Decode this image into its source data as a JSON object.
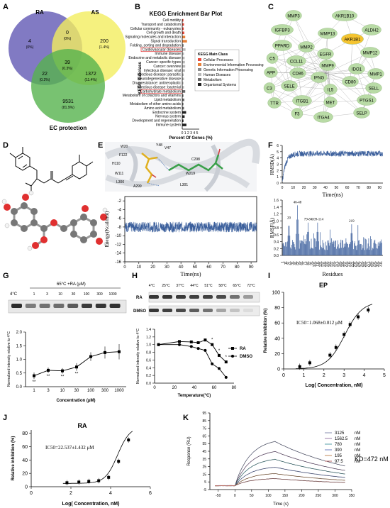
{
  "panels": {
    "A": {
      "letter": "A",
      "set_labels": [
        "RA",
        "AS",
        "EC protection"
      ],
      "regions": [
        {
          "count": "4",
          "pct": "(0%)",
          "color": "#5b5bb0"
        },
        {
          "count": "200",
          "pct": "(1.4%)",
          "color": "#f4ef6a"
        },
        {
          "count": "0",
          "pct": "(0%)",
          "color": "#8aa080"
        },
        {
          "count": "39",
          "pct": "(0.3%)",
          "color": "#7a9b50"
        },
        {
          "count": "22",
          "pct": "(0.2%)",
          "color": "#4f8f73"
        },
        {
          "count": "1372",
          "pct": "(11.4%)",
          "color": "#a9cf4e"
        },
        {
          "count": "9531",
          "pct": "(81.9%)",
          "color": "#57b44f"
        }
      ]
    },
    "B": {
      "letter": "B",
      "title": "KEGG Enrichment Bar Plot",
      "ylabel": "KEGG Subclass",
      "xlabel": "Percent Of Genes (%)",
      "xticks": [
        "0",
        "1",
        "2",
        "3",
        "4",
        "5"
      ],
      "legend_title": "KEGG Main Class",
      "legend": [
        {
          "name": "Cellular Processes",
          "color": "#e84a3c"
        },
        {
          "name": "Environmental Information Processing",
          "color": "#e8823c"
        },
        {
          "name": "Genetic Information Processing",
          "color": "#8c8c8c"
        },
        {
          "name": "Human Diseases",
          "color": "#b8b8b8"
        },
        {
          "name": "Metabolism",
          "color": "#6a6a6a"
        },
        {
          "name": "Organismal Systems",
          "color": "#222222"
        }
      ],
      "highlighted": [
        "Cardiovascular diseases",
        "Carbohydrate metabolism"
      ],
      "subclasses": [
        {
          "name": "Cell motility",
          "value": 0.4,
          "color": "#e84a3c"
        },
        {
          "name": "Transport and catabolism",
          "value": 0.6,
          "color": "#e84a3c"
        },
        {
          "name": "Cellular community - eukaryotes",
          "value": 0.5,
          "color": "#e84a3c"
        },
        {
          "name": "Cell growth and death",
          "value": 0.7,
          "color": "#e84a3c"
        },
        {
          "name": "Signaling molecules and interaction",
          "value": 1.0,
          "color": "#e8823c"
        },
        {
          "name": "Signal transduction",
          "value": 1.6,
          "color": "#e8823c"
        },
        {
          "name": "Folding, sorting and degradation",
          "value": 0.5,
          "color": "#8c8c8c"
        },
        {
          "name": "Cardiovascular diseases",
          "value": 1.1,
          "color": "#b8b8b8"
        },
        {
          "name": "Immune disease",
          "value": 0.6,
          "color": "#b8b8b8"
        },
        {
          "name": "Endocrine and metabolic disease",
          "value": 0.8,
          "color": "#b8b8b8"
        },
        {
          "name": "Cancer: specific types",
          "value": 0.9,
          "color": "#b8b8b8"
        },
        {
          "name": "Cancer: overview",
          "value": 1.0,
          "color": "#b8b8b8"
        },
        {
          "name": "Infectious disease: viral",
          "value": 0.9,
          "color": "#b8b8b8"
        },
        {
          "name": "Infectious disease: parasitic",
          "value": 0.5,
          "color": "#b8b8b8"
        },
        {
          "name": "Neurodegenerative disease",
          "value": 0.6,
          "color": "#b8b8b8"
        },
        {
          "name": "Drug resistance: antineoplastic",
          "value": 0.4,
          "color": "#b8b8b8"
        },
        {
          "name": "Infectious disease: bacterial",
          "value": 0.6,
          "color": "#b8b8b8"
        },
        {
          "name": "Carbohydrate metabolism",
          "value": 1.0,
          "color": "#6a6a6a"
        },
        {
          "name": "Metabolism of cofactors and vitamins",
          "value": 0.4,
          "color": "#6a6a6a"
        },
        {
          "name": "Lipid metabolism",
          "value": 0.7,
          "color": "#6a6a6a"
        },
        {
          "name": "Metabolism of other amino acids",
          "value": 0.4,
          "color": "#6a6a6a"
        },
        {
          "name": "Amino acid metabolism",
          "value": 0.6,
          "color": "#6a6a6a"
        },
        {
          "name": "Endocrine system",
          "value": 1.3,
          "color": "#222222"
        },
        {
          "name": "Nervous system",
          "value": 0.8,
          "color": "#222222"
        },
        {
          "name": "Development and regeneration",
          "value": 0.4,
          "color": "#222222"
        },
        {
          "name": "Immune system",
          "value": 1.4,
          "color": "#222222"
        }
      ]
    },
    "C": {
      "letter": "C",
      "highlight_color": "#f5c431",
      "node_color": "#b9dba6",
      "nodes": [
        {
          "id": "MMP3"
        },
        {
          "id": "AKR1B10"
        },
        {
          "id": "IGFBP3"
        },
        {
          "id": "MMP13"
        },
        {
          "id": "ALDH2"
        },
        {
          "id": "AKR1B1",
          "highlight": true
        },
        {
          "id": "PPARD"
        },
        {
          "id": "MMP2"
        },
        {
          "id": "MMP12"
        },
        {
          "id": "C5"
        },
        {
          "id": "CCL11"
        },
        {
          "id": "EGFR"
        },
        {
          "id": "APP"
        },
        {
          "id": "CD86"
        },
        {
          "id": "MMP9"
        },
        {
          "id": "IDO1"
        },
        {
          "id": "MMP1"
        },
        {
          "id": "IFNG"
        },
        {
          "id": "SELE"
        },
        {
          "id": "CD80"
        },
        {
          "id": "C3"
        },
        {
          "id": "IL5"
        },
        {
          "id": "SELL"
        },
        {
          "id": "TTR"
        },
        {
          "id": "ITGB1"
        },
        {
          "id": "MET"
        },
        {
          "id": "PTGS1"
        },
        {
          "id": "F3"
        },
        {
          "id": "ITGA4"
        },
        {
          "id": "SELP"
        }
      ]
    },
    "D": {
      "letter": "D"
    },
    "E": {
      "letter": "E",
      "ylabel": "Energy(Kcal/mol)",
      "xlabel": "Time(ns)",
      "yticks": [
        "-2",
        "-4",
        "-6",
        "-8",
        "-10",
        "-12",
        "-14",
        "-16"
      ],
      "xticks": [
        "0",
        "10",
        "20",
        "30",
        "40",
        "50",
        "60",
        "70",
        "80",
        "90"
      ],
      "residues": [
        "W20",
        "Y48",
        "H110",
        "W111",
        "L300",
        "W219",
        "V47",
        "A299",
        "L301",
        "F122",
        "C298"
      ],
      "trace": {
        "mean": -8.0,
        "amplitude": 1.2,
        "n": 900,
        "color": "#3b5f9c"
      }
    },
    "F": {
      "letter": "F",
      "rmsd": {
        "ylabel": "RMSD(Å)",
        "xlabel": "Time(ns)",
        "yticks": [
          "0",
          "1",
          "2",
          "3",
          "4",
          "5",
          "6"
        ],
        "xticks": [
          "0",
          "10",
          "20",
          "30",
          "40",
          "50",
          "60",
          "70",
          "80",
          "90"
        ],
        "plateau": 4.7,
        "color": "#3b5f9c"
      },
      "rmsf": {
        "ylabel": "RMSF(Å)",
        "xlabel": "Residues",
        "yticks": [
          "0.0",
          "0.2",
          "0.4",
          "0.6",
          "0.8",
          "1.0",
          "1.2",
          "1.4",
          "1.6"
        ],
        "color": "#3b5f9c",
        "peaks": [
          {
            "label": "20",
            "x": 20,
            "y": 1.0
          },
          {
            "label": "46-48",
            "x": 47,
            "y": 1.45
          },
          {
            "label": "79-84",
            "x": 81,
            "y": 0.95
          },
          {
            "label": "109-114",
            "x": 111,
            "y": 0.95
          },
          {
            "label": "219",
            "x": 219,
            "y": 0.9
          }
        ],
        "x_start": 1,
        "x_end": 316
      }
    },
    "G": {
      "letter": "G",
      "blot_header": "65°C +RA (μM)",
      "control_label": "4°C",
      "lane_labels": [
        "1",
        "3",
        "10",
        "30",
        "100",
        "300",
        "1000"
      ],
      "ylabel": "Normalized intensity relative to 4°C",
      "xlabel": "Concentration (μM)",
      "x": [
        "1",
        "3",
        "10",
        "30",
        "100",
        "300",
        "1000"
      ],
      "y": [
        0.4,
        0.6,
        0.58,
        0.72,
        1.1,
        1.25,
        1.28
      ],
      "err": [
        0.12,
        0.1,
        0.1,
        0.14,
        0.16,
        0.22,
        0.28
      ],
      "sig": [
        "**",
        "**",
        "**",
        "**",
        "",
        "",
        ""
      ],
      "yticks": [
        "0.0",
        "0.5",
        "1.0",
        "1.5",
        "2.0"
      ],
      "ylim": [
        0,
        2
      ]
    },
    "H": {
      "letter": "H",
      "temperatures": [
        "4°C",
        "25°C",
        "37°C",
        "44°C",
        "51°C",
        "58°C",
        "65°C",
        "72°C"
      ],
      "row_labels": [
        "RA",
        "DMSO"
      ],
      "ylabel": "Normalized intensity relative to 4°C",
      "xlabel": "Temperature(°C)",
      "xticks": [
        "0",
        "20",
        "40",
        "60",
        "80"
      ],
      "yticks": [
        "0.0",
        "0.2",
        "0.4",
        "0.6",
        "0.8",
        "1.0",
        "1.2",
        "1.4"
      ],
      "ylim": [
        0,
        1.4
      ],
      "series": [
        {
          "name": "RA",
          "x": [
            4,
            25,
            37,
            44,
            51,
            58,
            65,
            72
          ],
          "y": [
            1.0,
            1.08,
            1.07,
            1.05,
            1.12,
            1.0,
            0.72,
            0.55
          ]
        },
        {
          "name": "DMSO",
          "x": [
            4,
            25,
            37,
            44,
            51,
            58,
            65,
            72
          ],
          "y": [
            1.0,
            1.0,
            0.95,
            0.9,
            0.85,
            0.5,
            0.38,
            0.15
          ]
        }
      ],
      "sig": [
        "*",
        "*",
        "*"
      ]
    },
    "I": {
      "letter": "I",
      "title": "EP",
      "ylabel": "Relative inhibition (%)",
      "xlabel": "Log( Concentration, nM)",
      "annotation": "IC50=1.068±0.012 μM",
      "xticks": [
        "0",
        "1",
        "2",
        "3",
        "4",
        "5"
      ],
      "yticks": [
        "0",
        "20",
        "40",
        "60",
        "80",
        "100"
      ],
      "x": [
        0.8,
        1.3,
        2.3,
        2.6,
        3.0,
        3.3,
        3.7,
        4.2
      ],
      "y": [
        3,
        8,
        18,
        28,
        45,
        58,
        68,
        77
      ],
      "fit": {
        "ic50_log": 3.03,
        "top": 88,
        "bottom": 0,
        "slope": 1.0
      }
    },
    "J": {
      "letter": "J",
      "title": "RA",
      "ylabel": "Relative inhibition (%)",
      "xlabel": "Log( Concentration, nM)",
      "annotation": "IC50=22.537±1.432 μM",
      "xticks": [
        "0",
        "2",
        "4",
        "6"
      ],
      "yticks": [
        "0",
        "20",
        "40",
        "60",
        "80"
      ],
      "x": [
        1.8,
        2.4,
        2.9,
        3.4,
        3.9,
        4.4,
        4.9
      ],
      "y": [
        6,
        7,
        8,
        9,
        14,
        38,
        70
      ],
      "fit": {
        "ic50_log": 4.35,
        "top": 90,
        "bottom": 5,
        "slope": 1.4
      }
    },
    "K": {
      "letter": "K",
      "ylabel": "Response (RU)",
      "xlabel": "Time (s)",
      "xticks": [
        "-50",
        "0",
        "50",
        "100",
        "150",
        "200",
        "250",
        "300",
        "350"
      ],
      "yticks": [
        "-5",
        "5",
        "15",
        "25",
        "35",
        "45",
        "55",
        "65",
        "75",
        "85",
        "95"
      ],
      "annotation": "KD=472 nM",
      "series": [
        {
          "name": "3125",
          "unit": "nM",
          "rmax": 62,
          "color": "#8a8fb0"
        },
        {
          "name": "1562.5",
          "unit": "nM",
          "rmax": 48,
          "color": "#9b7da8"
        },
        {
          "name": "780",
          "unit": "nM",
          "rmax": 37,
          "color": "#5aa0a8"
        },
        {
          "name": "390",
          "unit": "nM",
          "rmax": 26,
          "color": "#6e7fc0"
        },
        {
          "name": "195",
          "unit": "nM",
          "rmax": 17,
          "color": "#c08a5a"
        },
        {
          "name": "97.5",
          "unit": "nM",
          "rmax": 10,
          "color": "#b96a6a"
        }
      ]
    }
  }
}
